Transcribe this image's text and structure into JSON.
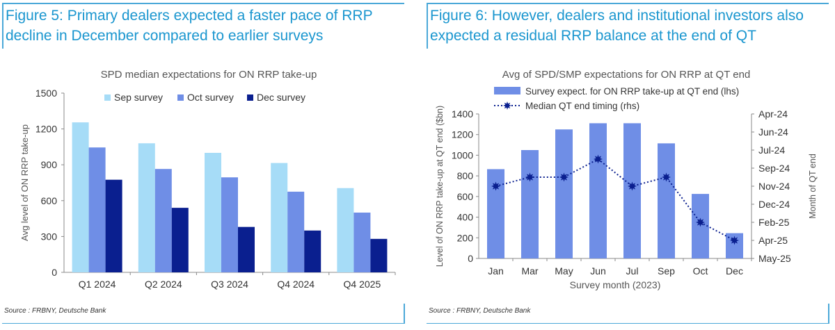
{
  "figure5": {
    "heading": "Figure 5: Primary dealers expected a faster pace of RRP decline in December compared to earlier surveys",
    "heading_lines": [
      "Figure 5: Primary dealers expected a faster pace of RRP",
      "decline in December compared to earlier surveys"
    ],
    "source": "Source : FRBNY, Deutsche Bank"
  },
  "figure6": {
    "heading": "Figure 6: However, dealers and institutional investors also expected a residual RRP balance at the end of QT",
    "heading_lines": [
      "Figure 6: However, dealers and institutional investors also",
      "expected a residual RRP balance at the end of QT"
    ],
    "source": "Source : FRBNY, Deutsche Bank"
  },
  "chart_data": [
    {
      "type": "bar",
      "title": "SPD median expectations for ON RRP take-up",
      "xlabel": "",
      "ylabel": "Avg level of ON RRP take-up",
      "ylim": [
        0,
        1500
      ],
      "yticks": [
        0,
        300,
        600,
        900,
        1200,
        1500
      ],
      "categories": [
        "Q1 2024",
        "Q2 2024",
        "Q3 2024",
        "Q4 2024",
        "Q4 2025"
      ],
      "series": [
        {
          "name": "Sep survey",
          "color": "#a6dcf7",
          "values": [
            1255,
            1080,
            1000,
            915,
            705
          ]
        },
        {
          "name": "Oct survey",
          "color": "#6f8ee6",
          "values": [
            1045,
            865,
            795,
            675,
            500
          ]
        },
        {
          "name": "Dec survey",
          "color": "#0a1f8f",
          "values": [
            775,
            540,
            380,
            350,
            280
          ]
        }
      ],
      "legend": "top",
      "grid": false
    },
    {
      "type": "bar",
      "title": "Avg of SPD/SMP expectations for ON RRP at QT end",
      "xlabel": "Survey month (2023)",
      "ylabel": "Level of ON RRP take-up at QT end ($bn)",
      "y2label": "Month of QT end",
      "ylim": [
        0,
        1400
      ],
      "yticks": [
        0,
        200,
        400,
        600,
        800,
        1000,
        1200,
        1400
      ],
      "y2ticks": [
        "Apr-24",
        "Jun-24",
        "Jul-24",
        "Sep-24",
        "Nov-24",
        "Dec-24",
        "Feb-25",
        "Apr-25",
        "May-25"
      ],
      "categories": [
        "Jan",
        "Mar",
        "May",
        "Jun",
        "Jul",
        "Sep",
        "Oct",
        "Dec"
      ],
      "series": [
        {
          "name": "Survey expect. for ON RRP take-up at QT end (lhs)",
          "type": "bar",
          "axis": "left",
          "color": "#6f8ee6",
          "values": [
            865,
            1050,
            1250,
            1310,
            1310,
            1115,
            625,
            245
          ]
        },
        {
          "name": "Median QT end timing (rhs)",
          "type": "line",
          "axis": "right",
          "style": "dotted",
          "marker": "star",
          "color": "#0a1f8f",
          "values": [
            "Nov-24",
            "Oct-24",
            "Oct-24",
            "Aug-24",
            "Nov-24",
            "Oct-24",
            "Feb-25",
            "Apr-25"
          ]
        }
      ],
      "legend": "top-left",
      "grid": false
    }
  ]
}
